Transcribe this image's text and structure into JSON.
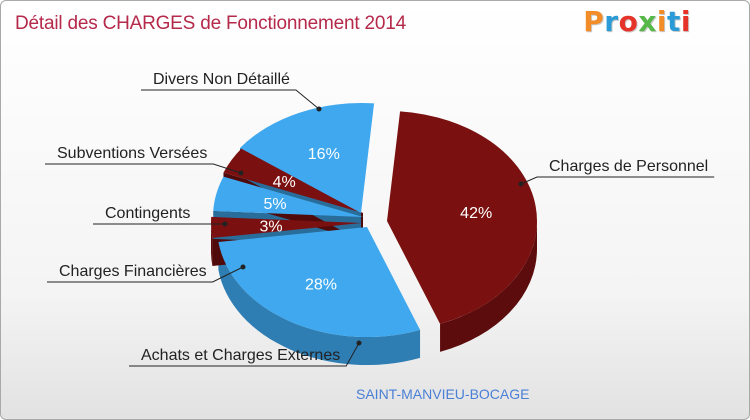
{
  "chart_data": {
    "type": "pie",
    "title": "Détail des CHARGES de Fonctionnement 2014",
    "subtitle": "SAINT-MANVIEU-BOCAGE",
    "categories": [
      "Charges de Personnel",
      "Achats et Charges Externes",
      "Charges Financières",
      "Contingents",
      "Subventions Versées",
      "Divers Non Détaillé"
    ],
    "values": [
      42,
      28,
      3,
      5,
      4,
      16
    ],
    "value_labels": [
      "42%",
      "28%",
      "3%",
      "5%",
      "4%",
      "16%"
    ],
    "colors": [
      "#7b1010",
      "#3fa8ee",
      "#7b1010",
      "#3fa8ee",
      "#7b1010",
      "#3fa8ee"
    ],
    "unit": "%",
    "style": "3d-exploded"
  },
  "logo": {
    "text": "Proxiti",
    "letter_colors": [
      "#f28c28",
      "#2a9bd6",
      "#e6332a",
      "#56b848",
      "#f28c28",
      "#2a9bd6",
      "#e6332a"
    ]
  }
}
